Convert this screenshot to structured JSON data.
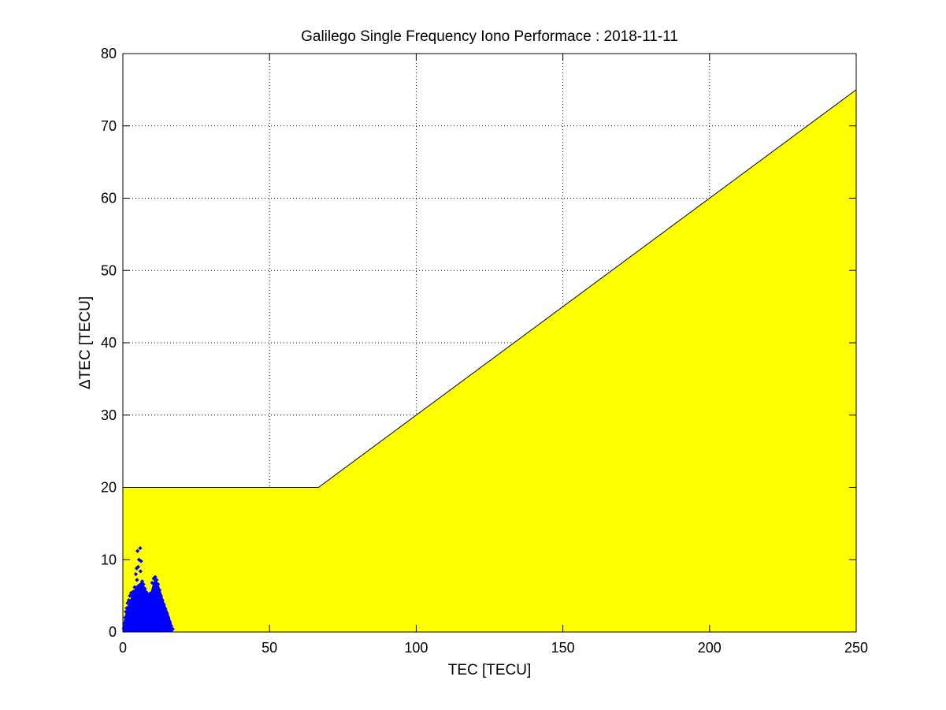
{
  "chart_data": {
    "type": "scatter",
    "title": "Galilego Single Frequency Iono Performace : 2018-11-11",
    "xlabel": "TEC [TECU]",
    "ylabel": "ΔTEC [TECU]",
    "xlim": [
      0,
      250
    ],
    "ylim": [
      0,
      80
    ],
    "xticks": [
      0,
      50,
      100,
      150,
      200,
      250
    ],
    "yticks": [
      0,
      10,
      20,
      30,
      40,
      50,
      60,
      70,
      80
    ],
    "xtick_labels": [
      "0",
      "50",
      "100",
      "150",
      "200",
      "250"
    ],
    "ytick_labels": [
      "0",
      "10",
      "20",
      "30",
      "40",
      "50",
      "60",
      "70",
      "80"
    ],
    "grid": true,
    "threshold_region": {
      "fill_color": "#ffff00",
      "edge_color": "#000000",
      "boundary": [
        [
          0,
          20
        ],
        [
          66.7,
          20
        ],
        [
          250,
          75
        ]
      ]
    },
    "series": [
      {
        "marker_color": "#0000ff",
        "points": [
          [
            0.3,
            0.5
          ],
          [
            0.5,
            1.2
          ],
          [
            0.8,
            2.0
          ],
          [
            1.0,
            2.8
          ],
          [
            1.3,
            3.3
          ],
          [
            1.6,
            4.0
          ],
          [
            2.0,
            4.4
          ],
          [
            2.4,
            5.0
          ],
          [
            2.8,
            5.4
          ],
          [
            3.2,
            5.0
          ],
          [
            3.6,
            5.6
          ],
          [
            4.0,
            6.2
          ],
          [
            4.4,
            8.0
          ],
          [
            4.7,
            8.8
          ],
          [
            5.0,
            11.2
          ],
          [
            5.5,
            10.0
          ],
          [
            5.9,
            11.6
          ],
          [
            6.2,
            9.8
          ],
          [
            6.6,
            7.0
          ],
          [
            7.0,
            6.6
          ],
          [
            7.5,
            6.0
          ],
          [
            8.0,
            5.5
          ],
          [
            8.5,
            4.8
          ],
          [
            9.0,
            4.0
          ],
          [
            9.5,
            5.2
          ],
          [
            10.0,
            6.8
          ],
          [
            10.5,
            7.4
          ],
          [
            11.0,
            7.6
          ],
          [
            11.5,
            7.2
          ],
          [
            12.0,
            6.6
          ],
          [
            12.5,
            5.8
          ],
          [
            13.0,
            5.0
          ],
          [
            13.5,
            4.4
          ],
          [
            14.0,
            3.8
          ],
          [
            14.5,
            3.2
          ],
          [
            15.0,
            2.6
          ],
          [
            15.5,
            2.0
          ],
          [
            16.0,
            1.4
          ],
          [
            16.5,
            0.8
          ],
          [
            17.0,
            0.4
          ],
          [
            1.0,
            0.2
          ],
          [
            2.0,
            0.6
          ],
          [
            3.0,
            1.0
          ],
          [
            4.0,
            1.4
          ],
          [
            5.0,
            1.8
          ],
          [
            6.0,
            2.2
          ],
          [
            7.0,
            2.6
          ],
          [
            8.0,
            3.0
          ],
          [
            9.0,
            2.4
          ],
          [
            10.0,
            3.2
          ],
          [
            11.0,
            3.6
          ],
          [
            12.0,
            4.0
          ],
          [
            13.0,
            3.0
          ],
          [
            14.0,
            2.2
          ],
          [
            15.0,
            1.2
          ],
          [
            16.0,
            0.4
          ],
          [
            2.5,
            3.0
          ],
          [
            3.5,
            4.0
          ],
          [
            4.5,
            5.2
          ],
          [
            5.5,
            6.4
          ],
          [
            6.5,
            5.8
          ],
          [
            7.5,
            4.6
          ],
          [
            8.5,
            3.6
          ],
          [
            9.5,
            3.0
          ],
          [
            10.5,
            4.6
          ],
          [
            11.5,
            5.4
          ],
          [
            12.5,
            4.6
          ],
          [
            13.5,
            3.4
          ],
          [
            14.5,
            2.4
          ],
          [
            5.2,
            9.0
          ],
          [
            4.8,
            7.2
          ],
          [
            6.0,
            8.4
          ]
        ]
      }
    ]
  }
}
